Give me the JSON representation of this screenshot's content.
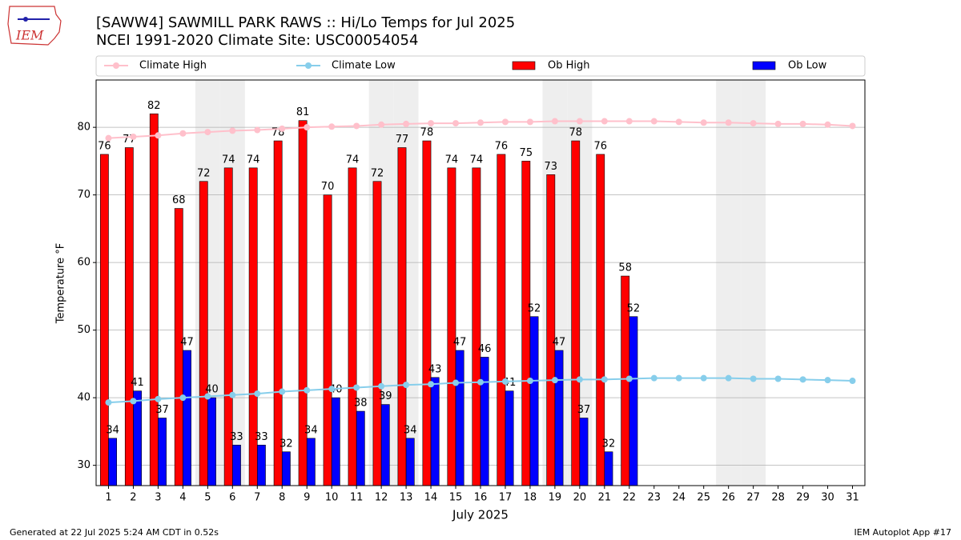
{
  "chart_data": {
    "type": "bar",
    "title": "[SAWW4] SAWMILL PARK RAWS :: Hi/Lo Temps for Jul 2025",
    "subtitle": "NCEI 1991-2020 Climate Site: USC00054054",
    "xlabel": "July 2025",
    "ylabel": "Temperature °F",
    "footer_left": "Generated at 22 Jul 2025 5:24 AM CDT in 0.52s",
    "footer_right": "IEM Autoplot App #17",
    "logo_text": "IEM",
    "x": [
      1,
      2,
      3,
      4,
      5,
      6,
      7,
      8,
      9,
      10,
      11,
      12,
      13,
      14,
      15,
      16,
      17,
      18,
      19,
      20,
      21,
      22,
      23,
      24,
      25,
      26,
      27,
      28,
      29,
      30,
      31
    ],
    "xlim": [
      0.5,
      31.5
    ],
    "xticks": [
      1,
      2,
      3,
      4,
      5,
      6,
      7,
      8,
      9,
      10,
      11,
      12,
      13,
      14,
      15,
      16,
      17,
      18,
      19,
      20,
      21,
      22,
      23,
      24,
      25,
      26,
      27,
      28,
      29,
      30,
      31
    ],
    "ylim": [
      27,
      87
    ],
    "yticks": [
      30,
      40,
      50,
      60,
      70,
      80
    ],
    "grid": true,
    "shaded_days": [
      5,
      6,
      12,
      13,
      19,
      20,
      26,
      27
    ],
    "series": [
      {
        "name": "Climate High",
        "type": "line",
        "color": "#ffc0cb",
        "values": [
          78.4,
          78.6,
          78.8,
          79.1,
          79.3,
          79.5,
          79.6,
          79.8,
          80.0,
          80.1,
          80.2,
          80.4,
          80.5,
          80.6,
          80.6,
          80.7,
          80.8,
          80.8,
          80.9,
          80.9,
          80.9,
          80.9,
          80.9,
          80.8,
          80.7,
          80.7,
          80.6,
          80.5,
          80.5,
          80.4,
          80.2
        ]
      },
      {
        "name": "Climate Low",
        "type": "line",
        "color": "#87ceeb",
        "values": [
          39.3,
          39.5,
          39.8,
          40.0,
          40.2,
          40.4,
          40.6,
          40.9,
          41.1,
          41.3,
          41.5,
          41.7,
          41.9,
          42.0,
          42.2,
          42.3,
          42.4,
          42.5,
          42.6,
          42.7,
          42.7,
          42.8,
          42.9,
          42.9,
          42.9,
          42.9,
          42.8,
          42.8,
          42.7,
          42.6,
          42.5
        ]
      },
      {
        "name": "Ob High",
        "type": "bar",
        "color": "#ff0000",
        "values": [
          76,
          77,
          82,
          68,
          72,
          74,
          74,
          78,
          81,
          70,
          74,
          72,
          77,
          78,
          74,
          74,
          76,
          75,
          73,
          78,
          76,
          58,
          null,
          null,
          null,
          null,
          null,
          null,
          null,
          null,
          null
        ]
      },
      {
        "name": "Ob Low",
        "type": "bar",
        "color": "#0000ff",
        "values": [
          34,
          41,
          37,
          47,
          40,
          33,
          33,
          32,
          34,
          40,
          38,
          39,
          34,
          43,
          47,
          46,
          41,
          52,
          47,
          37,
          32,
          52,
          null,
          null,
          null,
          null,
          null,
          null,
          null,
          null,
          null
        ]
      }
    ]
  }
}
